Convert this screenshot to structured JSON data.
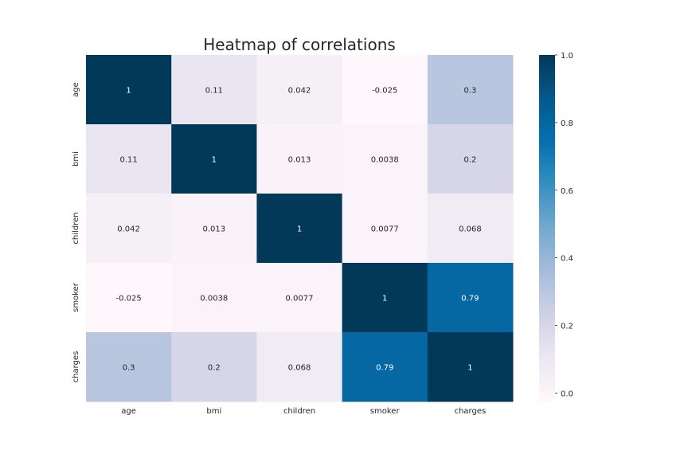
{
  "chart_data": {
    "type": "heatmap",
    "title": "Heatmap of correlations",
    "x_labels": [
      "age",
      "bmi",
      "children",
      "smoker",
      "charges"
    ],
    "y_labels": [
      "age",
      "bmi",
      "children",
      "smoker",
      "charges"
    ],
    "values": [
      [
        1,
        0.11,
        0.042,
        -0.025,
        0.3
      ],
      [
        0.11,
        1,
        0.013,
        0.0038,
        0.2
      ],
      [
        0.042,
        0.013,
        1,
        0.0077,
        0.068
      ],
      [
        -0.025,
        0.0038,
        0.0077,
        1,
        0.79
      ],
      [
        0.3,
        0.2,
        0.068,
        0.79,
        1
      ]
    ],
    "annotations": [
      [
        "1",
        "0.11",
        "0.042",
        "-0.025",
        "0.3"
      ],
      [
        "0.11",
        "1",
        "0.013",
        "0.0038",
        "0.2"
      ],
      [
        "0.042",
        "0.013",
        "1",
        "0.0077",
        "0.068"
      ],
      [
        "-0.025",
        "0.0038",
        "0.0077",
        "1",
        "0.79"
      ],
      [
        "0.3",
        "0.2",
        "0.068",
        "0.79",
        "1"
      ]
    ],
    "colormap": "PuBu",
    "colorbar": {
      "vmin": -0.025,
      "vmax": 1.0,
      "ticks": [
        0.0,
        0.2,
        0.4,
        0.6,
        0.8,
        1.0
      ],
      "tick_labels": [
        "0.0",
        "0.2",
        "0.4",
        "0.6",
        "0.8",
        "1.0"
      ]
    },
    "colors": {
      "low": "#fff7fb",
      "high": "#023858",
      "text_dark": "#262626",
      "text_light": "#ffffff"
    }
  }
}
